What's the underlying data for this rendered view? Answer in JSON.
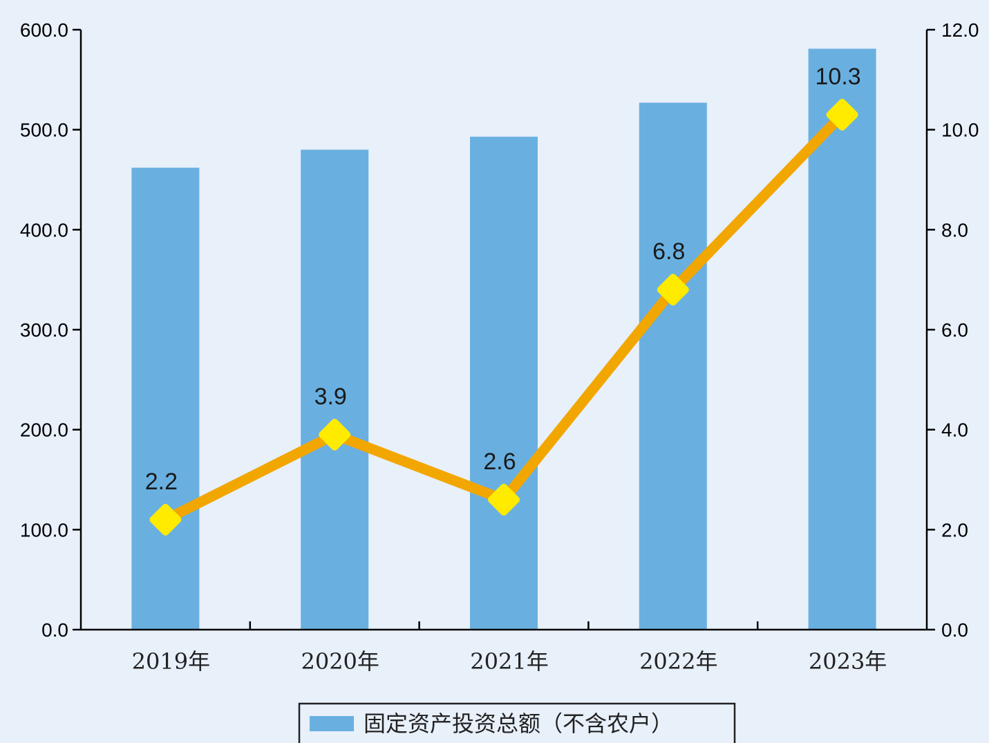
{
  "chart_data": {
    "type": "bar+line",
    "categories": [
      "2019年",
      "2020年",
      "2021年",
      "2022年",
      "2023年"
    ],
    "series": [
      {
        "name": "固定资产投资总额（不含农户）",
        "type": "bar",
        "axis": "left",
        "values": [
          462.0,
          480.0,
          493.0,
          527.0,
          581.0
        ]
      },
      {
        "type": "line",
        "axis": "right",
        "values": [
          2.2,
          3.9,
          2.6,
          6.8,
          10.3
        ],
        "data_labels": [
          "2.2",
          "3.9",
          "2.6",
          "6.8",
          "10.3"
        ]
      }
    ],
    "y_left": {
      "lim": [
        0,
        600
      ],
      "ticks": [
        "0.0",
        "100.0",
        "200.0",
        "300.0",
        "400.0",
        "500.0",
        "600.0"
      ]
    },
    "y_right": {
      "lim": [
        0,
        12
      ],
      "ticks": [
        "0.0",
        "2.0",
        "4.0",
        "6.0",
        "8.0",
        "10.0",
        "12.0"
      ]
    },
    "grid": false,
    "legend_position": "bottom-center",
    "colors": {
      "bar": "#69B0E1",
      "line": "#F2A600",
      "marker": "#FFEB00",
      "axis": "#000000",
      "background": "#E8F0FA"
    }
  }
}
